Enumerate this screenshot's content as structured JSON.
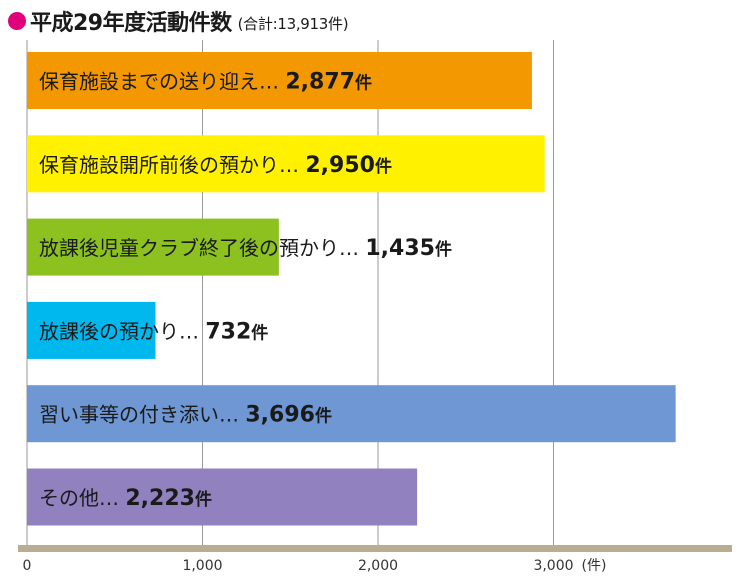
{
  "title": {
    "main": "平成29年度活動件数",
    "sub": "(合計:13,913件)"
  },
  "colors": {
    "title_dot": "#e0007a",
    "axis": "#b9ad91",
    "grid": "#9a9a9a"
  },
  "chart_data": {
    "type": "bar",
    "orientation": "horizontal",
    "title": "平成29年度活動件数",
    "subtitle": "(合計:13,913件)",
    "xunit": "(件)",
    "xlim": [
      0,
      4000
    ],
    "xticks": [
      0,
      1000,
      2000,
      3000
    ],
    "xtick_labels": [
      "0",
      "1,000",
      "2,000",
      "3,000"
    ],
    "grid": true,
    "value_unit": "件",
    "categories": [
      "保育施設までの送り迎え…",
      "保育施設開所前後の預かり…",
      "放課後児童クラブ終了後の預かり…",
      "放課後の預かり…",
      "習い事等の付き添い…",
      "その他…"
    ],
    "values": [
      2877,
      2950,
      1435,
      732,
      3696,
      2223
    ],
    "value_labels": [
      "2,877",
      "2,950",
      "1,435",
      "732",
      "3,696",
      "2,223"
    ],
    "colors": [
      "#f39800",
      "#fff100",
      "#8cc11f",
      "#00b7ee",
      "#6e97d3",
      "#9181bf"
    ]
  }
}
